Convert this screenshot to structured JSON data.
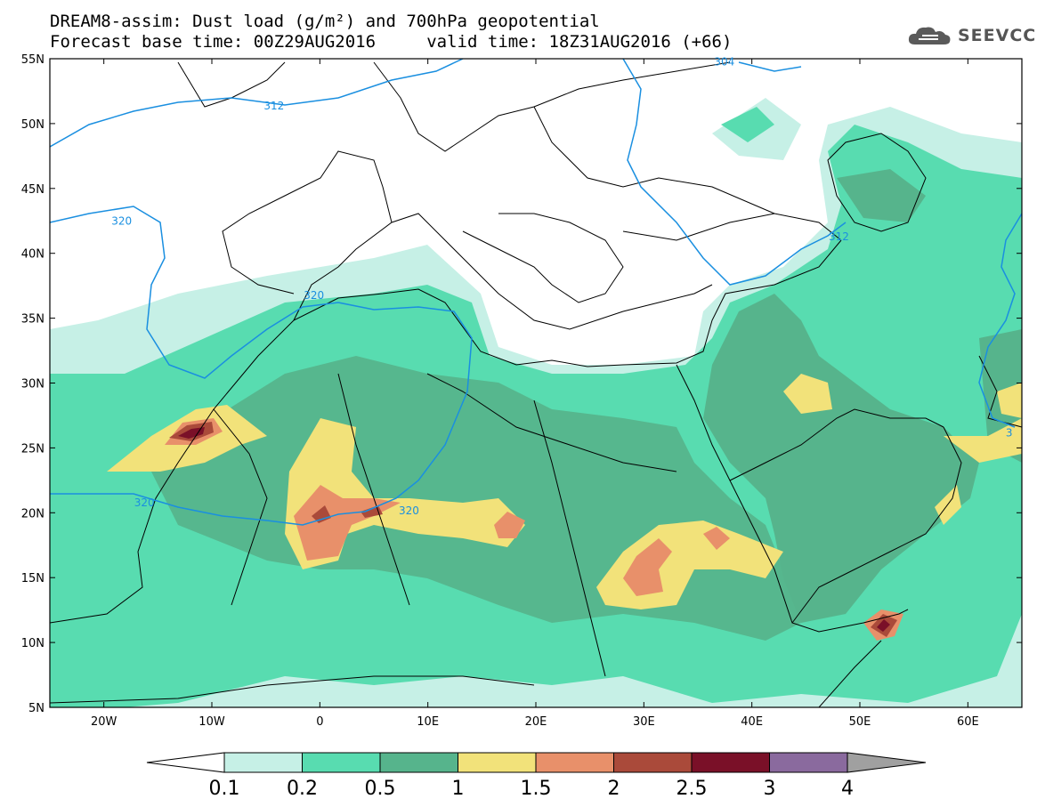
{
  "header": {
    "title_line1": "DREAM8-assim: Dust load (g/m²) and 700hPa geopotential",
    "title_line2": "Forecast base time: 00Z29AUG2016     valid time: 18Z31AUG2016 (+66)"
  },
  "logo": {
    "text": "SEEVCCC",
    "icon": "cloud-icon"
  },
  "map": {
    "lon_range": [
      -25,
      65
    ],
    "lat_range": [
      5,
      55
    ],
    "lat_ticks": [
      "55N",
      "50N",
      "45N",
      "40N",
      "35N",
      "30N",
      "25N",
      "20N",
      "15N",
      "10N",
      "5N"
    ],
    "lat_values": [
      55,
      50,
      45,
      40,
      35,
      30,
      25,
      20,
      15,
      10,
      5
    ],
    "lon_ticks": [
      "20W",
      "10W",
      "0",
      "10E",
      "20E",
      "30E",
      "40E",
      "50E",
      "60E"
    ],
    "lon_values": [
      -20,
      -10,
      0,
      10,
      20,
      30,
      40,
      50,
      60
    ],
    "contour_labels": [
      {
        "text": "304",
        "lon": 37.5,
        "lat": 54.7
      },
      {
        "text": "312",
        "lon": -4.2,
        "lat": 51.3
      },
      {
        "text": "320",
        "lon": -18.3,
        "lat": 42.4
      },
      {
        "text": "320",
        "lon": -0.5,
        "lat": 36.7
      },
      {
        "text": "320",
        "lon": -16.2,
        "lat": 20.7
      },
      {
        "text": "320",
        "lon": 8.3,
        "lat": 20.1
      },
      {
        "text": "312",
        "lon": 48.1,
        "lat": 41.2
      },
      {
        "text": "3",
        "lon": 64.5,
        "lat": 26.1
      }
    ]
  },
  "colorbar": {
    "labels": [
      "0.1",
      "0.2",
      "0.5",
      "1",
      "1.5",
      "2",
      "2.5",
      "3",
      "4"
    ],
    "colors": [
      "#c6f0e6",
      "#58dcb0",
      "#56b48c",
      "#f2e27a",
      "#e8906a",
      "#aa4a3a",
      "#7a1028",
      "#8a6a9e"
    ],
    "under_color": "#ffffff",
    "over_color": "#a0a0a0"
  }
}
